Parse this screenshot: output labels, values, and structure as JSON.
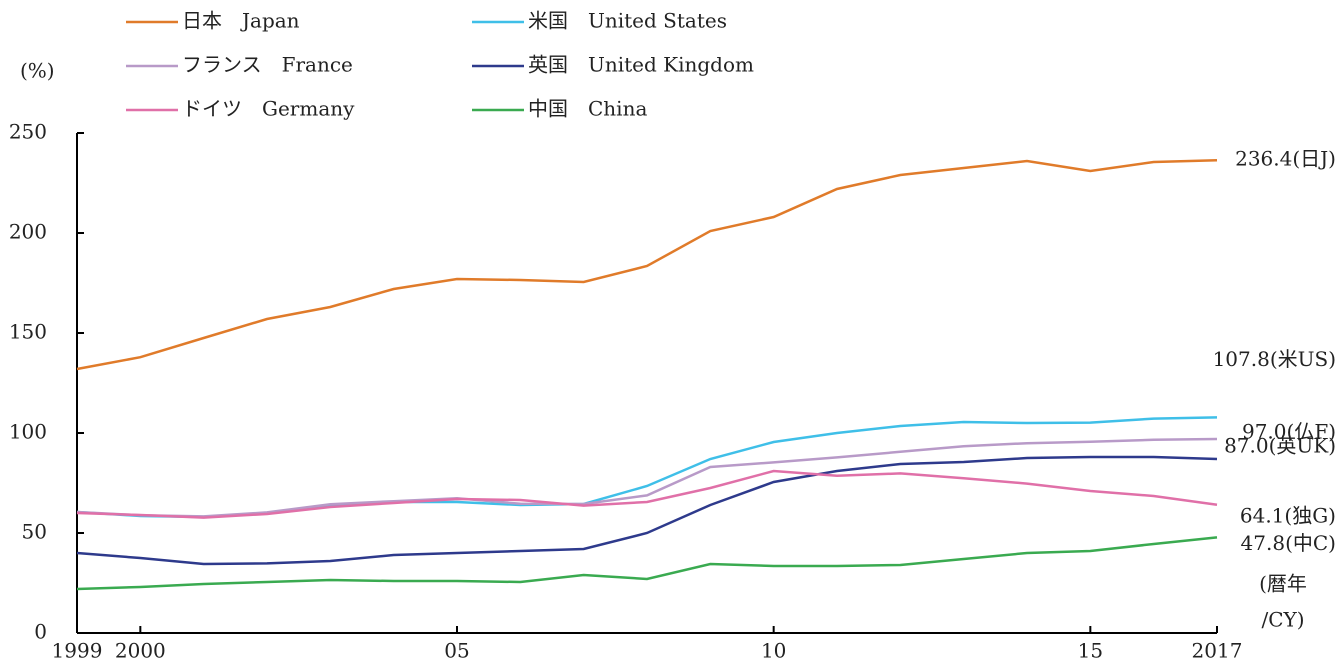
{
  "chart_data": {
    "type": "line",
    "y_label": "(%)",
    "x_label": [
      "(暦年",
      "/CY)"
    ],
    "x": [
      1999,
      2000,
      2001,
      2002,
      2003,
      2004,
      2005,
      2006,
      2007,
      2008,
      2009,
      2010,
      2011,
      2012,
      2013,
      2014,
      2015,
      2016,
      2017
    ],
    "xlim": [
      1999,
      2017
    ],
    "xticks": [
      1999,
      2000,
      {
        "value": 2005,
        "label": "05"
      },
      {
        "value": 2010,
        "label": "10"
      },
      {
        "value": 2015,
        "label": "15"
      },
      2017
    ],
    "ylim": [
      0,
      250
    ],
    "yticks": [
      0,
      50,
      100,
      150,
      200,
      250
    ],
    "grid": false,
    "series": [
      {
        "name": "日本　Japan",
        "color": "#e07b2a",
        "end_label": "236.4(日J)",
        "values": [
          132,
          137.9,
          147.5,
          157,
          163,
          172,
          177,
          176.5,
          175.5,
          183.5,
          201,
          208,
          222,
          229,
          232.5,
          236,
          231,
          235.5,
          236.4
        ]
      },
      {
        "name": "米国　United States",
        "color": "#3fbfe8",
        "end_label": "107.8(米US)",
        "values": [
          60.5,
          58.5,
          58,
          60,
          64,
          65.5,
          65.5,
          64,
          64.5,
          73.5,
          87,
          95.5,
          100,
          103.5,
          105.5,
          105,
          105.2,
          107.2,
          107.8
        ]
      },
      {
        "name": "フランス　France",
        "color": "#b89ac8",
        "end_label": "97.0(仏F)",
        "values": [
          60.5,
          58.9,
          58.3,
          60.3,
          64.4,
          65.9,
          67.4,
          64.6,
          64.5,
          68.8,
          83,
          85.3,
          87.8,
          90.6,
          93.4,
          94.9,
          95.6,
          96.6,
          97.0
        ]
      },
      {
        "name": "英国　United Kingdom",
        "color": "#2e3a8c",
        "end_label": "87.0(英UK)",
        "values": [
          40,
          37.5,
          34.5,
          34.8,
          36,
          39,
          40,
          41,
          42,
          50,
          64,
          75.5,
          81,
          84.5,
          85.5,
          87.5,
          88,
          88,
          87.0
        ]
      },
      {
        "name": "ドイツ　Germany",
        "color": "#e070a8",
        "end_label": "64.1(独G)",
        "values": [
          60,
          59,
          57.7,
          59.5,
          63,
          65,
          67,
          66.5,
          63.7,
          65.5,
          72.5,
          81,
          78.6,
          79.8,
          77.4,
          74.7,
          71,
          68.5,
          64.1
        ]
      },
      {
        "name": "中国　China",
        "color": "#3aaa50",
        "end_label": "47.8(中C)",
        "values": [
          22,
          23,
          24.5,
          25.5,
          26.5,
          26,
          26,
          25.5,
          29,
          27,
          34.5,
          33.5,
          33.5,
          34,
          37,
          40,
          41,
          44.5,
          47.8
        ]
      }
    ]
  }
}
